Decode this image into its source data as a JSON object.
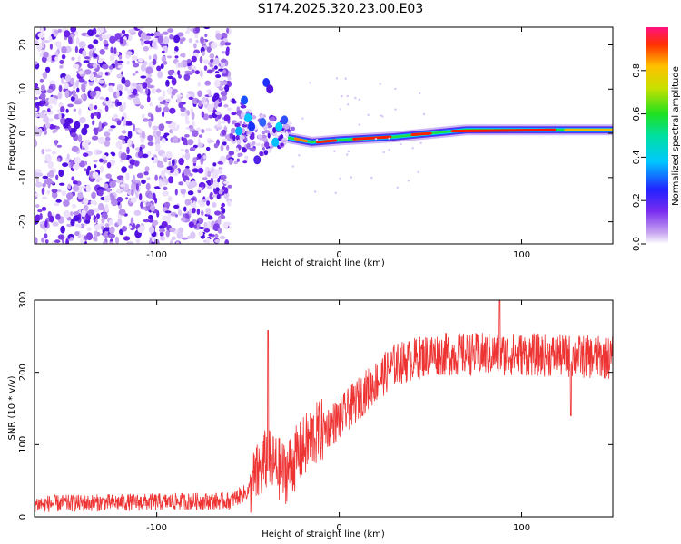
{
  "title": "S174.2025.320.23.00.E03",
  "chart_data": [
    {
      "type": "heatmap",
      "xlabel": "Height of straight line (km)",
      "ylabel": "Frequency (Hz)",
      "xlim": [
        -167,
        150
      ],
      "ylim": [
        -25,
        24
      ],
      "xticks": [
        -100,
        0,
        100
      ],
      "yticks": [
        -20,
        -10,
        0,
        10,
        20
      ],
      "colorbar": {
        "label": "Normalized spectral amplitude",
        "range": [
          0,
          1
        ],
        "ticks": [
          "0.0",
          "0.2",
          "0.4",
          "0.6",
          "0.8"
        ]
      },
      "description_data": {
        "noise_region_km": [
          -167,
          -60
        ],
        "ridge": [
          {
            "x": -28,
            "y": -1.0
          },
          {
            "x": -15,
            "y": -2.0
          },
          {
            "x": 0,
            "y": -1.5
          },
          {
            "x": 30,
            "y": -0.8
          },
          {
            "x": 50,
            "y": 0.0
          },
          {
            "x": 70,
            "y": 0.8
          },
          {
            "x": 100,
            "y": 0.8
          },
          {
            "x": 150,
            "y": 0.8
          }
        ]
      }
    },
    {
      "type": "line",
      "xlabel": "Height of straight line (km)",
      "ylabel": "SNR (10 * v/v)",
      "xlim": [
        -167,
        150
      ],
      "ylim": [
        0,
        300
      ],
      "xticks": [
        -100,
        0,
        100
      ],
      "yticks": [
        0,
        100,
        200,
        300
      ],
      "series": [
        {
          "name": "SNR",
          "color": "#ee3333",
          "envelope": [
            {
              "x": -167,
              "mean": 18
            },
            {
              "x": -60,
              "mean": 22
            },
            {
              "x": -50,
              "mean": 35
            },
            {
              "x": -40,
              "mean": 80
            },
            {
              "x": -30,
              "mean": 60
            },
            {
              "x": -15,
              "mean": 110
            },
            {
              "x": 0,
              "mean": 135
            },
            {
              "x": 15,
              "mean": 175
            },
            {
              "x": 30,
              "mean": 210
            },
            {
              "x": 50,
              "mean": 225
            },
            {
              "x": 100,
              "mean": 225
            },
            {
              "x": 150,
              "mean": 220
            }
          ],
          "spikes": [
            {
              "x": -39,
              "y": 258
            },
            {
              "x": 88,
              "y": 300
            },
            {
              "x": 127,
              "y": 140
            }
          ]
        }
      ]
    }
  ]
}
